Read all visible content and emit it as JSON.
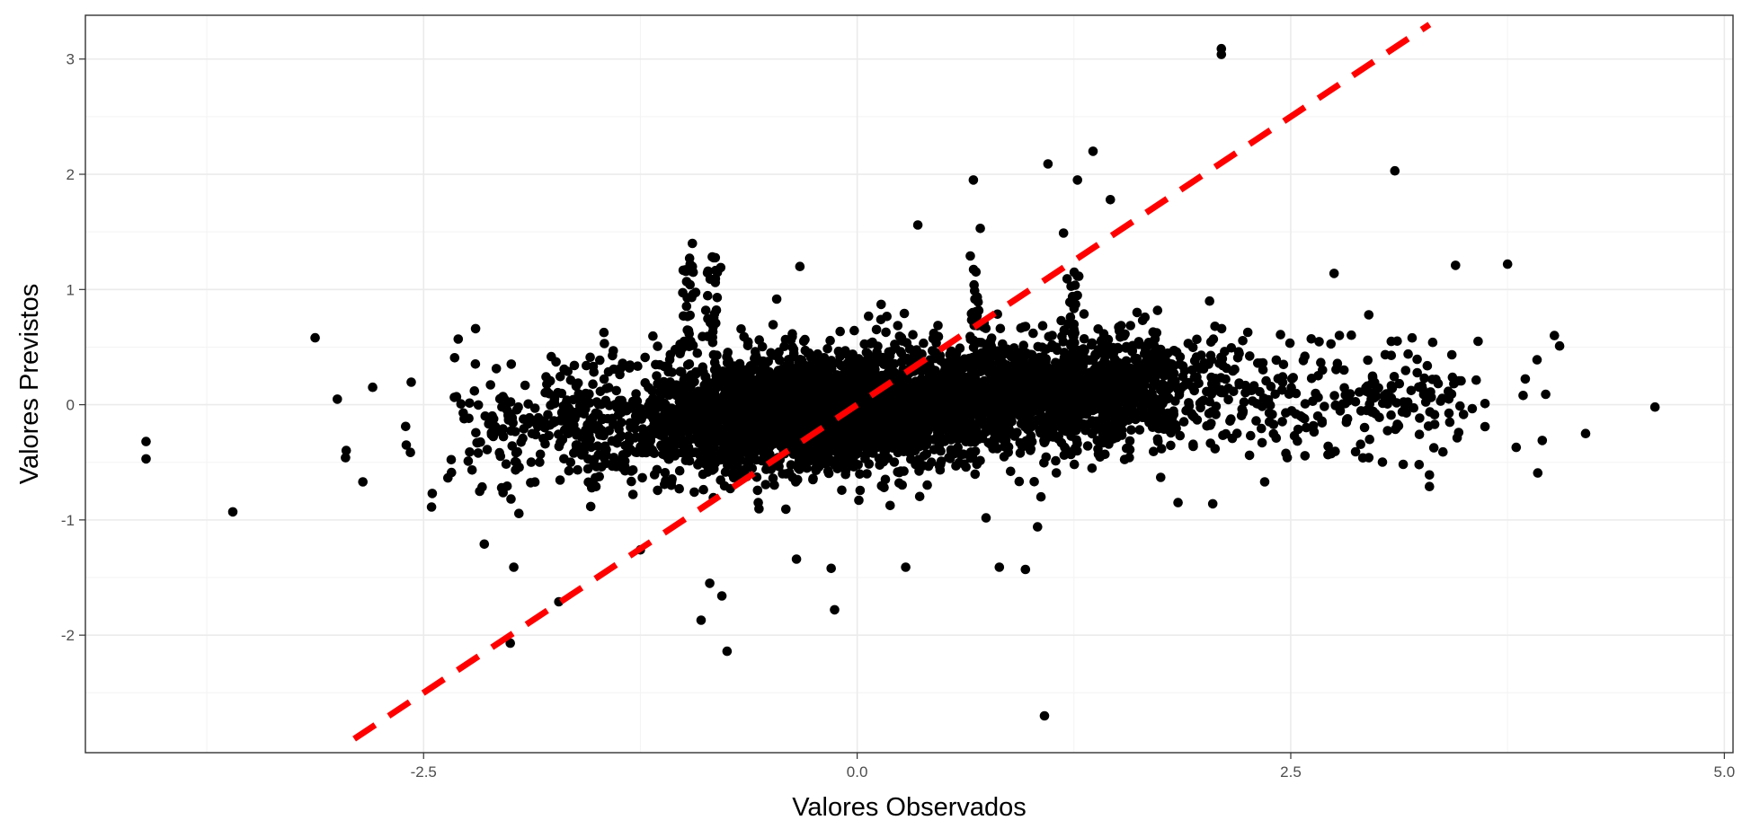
{
  "chart_data": {
    "type": "scatter",
    "title": "",
    "xlabel": "Valores Observados",
    "ylabel": "Valores Previstos",
    "xlim": [
      -4.45,
      5.05
    ],
    "ylim": [
      -3.02,
      3.38
    ],
    "x_ticks": [
      -2.5,
      0.0,
      2.5,
      5.0
    ],
    "x_tick_labels": [
      "-2.5",
      "0.0",
      "2.5",
      "5.0"
    ],
    "y_ticks": [
      -2,
      -1,
      0,
      1,
      2,
      3
    ],
    "y_tick_labels": [
      "-2",
      "-1",
      "0",
      "1",
      "2",
      "3"
    ],
    "grid": true,
    "legend": "none",
    "point_color": "#000000",
    "reference_line": {
      "label": "",
      "slope": 1,
      "intercept": 0,
      "from": -2.9,
      "to": 3.3,
      "color": "#ff0000",
      "style": "dashed"
    },
    "point_cloud": {
      "core_center_x": -0.3,
      "core_center_y": -0.08,
      "core_sd_x": 0.55,
      "core_sd_y": 0.25,
      "right_center_x": 1.1,
      "right_center_y": 0.12,
      "right_sd_x": 0.5,
      "right_sd_y": 0.22
    },
    "outliers": [
      {
        "x": -4.1,
        "y": -0.32
      },
      {
        "x": -4.1,
        "y": -0.47
      },
      {
        "x": -3.6,
        "y": -0.93
      },
      {
        "x": -2.95,
        "y": -0.46
      },
      {
        "x": -2.85,
        "y": -0.67
      },
      {
        "x": -2.6,
        "y": -0.35
      },
      {
        "x": -2.45,
        "y": -0.77
      },
      {
        "x": -2.3,
        "y": 0.57
      },
      {
        "x": -2.2,
        "y": 0.66
      },
      {
        "x": -2.15,
        "y": -1.21
      },
      {
        "x": -1.98,
        "y": -1.41
      },
      {
        "x": -2.0,
        "y": -2.07
      },
      {
        "x": -1.72,
        "y": -1.71
      },
      {
        "x": -1.25,
        "y": -1.26
      },
      {
        "x": -0.9,
        "y": -1.87
      },
      {
        "x": -0.75,
        "y": -2.14
      },
      {
        "x": -0.85,
        "y": -1.55
      },
      {
        "x": -0.78,
        "y": -1.66
      },
      {
        "x": -0.13,
        "y": -1.78
      },
      {
        "x": -0.35,
        "y": -1.34
      },
      {
        "x": -0.15,
        "y": -1.42
      },
      {
        "x": 0.28,
        "y": -1.41
      },
      {
        "x": 0.82,
        "y": -1.41
      },
      {
        "x": 0.97,
        "y": -1.43
      },
      {
        "x": 1.08,
        "y": -2.7
      },
      {
        "x": 1.04,
        "y": -1.06
      },
      {
        "x": 1.06,
        "y": -0.8
      },
      {
        "x": 2.1,
        "y": 3.09
      },
      {
        "x": 2.1,
        "y": 3.04
      },
      {
        "x": 3.1,
        "y": 2.03
      },
      {
        "x": 1.1,
        "y": 2.09
      },
      {
        "x": 1.27,
        "y": 1.95
      },
      {
        "x": 1.36,
        "y": 2.2
      },
      {
        "x": 0.67,
        "y": 1.95
      },
      {
        "x": 1.46,
        "y": 1.78
      },
      {
        "x": 0.35,
        "y": 1.56
      },
      {
        "x": -0.95,
        "y": 1.4
      },
      {
        "x": -0.95,
        "y": 1.2
      },
      {
        "x": -0.33,
        "y": 1.2
      },
      {
        "x": 0.71,
        "y": 1.53
      },
      {
        "x": 1.19,
        "y": 1.49
      },
      {
        "x": 2.75,
        "y": 1.14
      },
      {
        "x": 3.45,
        "y": 1.21
      },
      {
        "x": 3.75,
        "y": 1.22
      },
      {
        "x": 4.02,
        "y": 0.6
      },
      {
        "x": 4.05,
        "y": 0.51
      },
      {
        "x": 3.92,
        "y": 0.39
      },
      {
        "x": 4.6,
        "y": -0.02
      },
      {
        "x": 4.2,
        "y": -0.25
      },
      {
        "x": 3.95,
        "y": -0.31
      },
      {
        "x": 3.8,
        "y": -0.37
      },
      {
        "x": 3.97,
        "y": 0.09
      },
      {
        "x": 3.84,
        "y": 0.08
      },
      {
        "x": 3.62,
        "y": 0.01
      },
      {
        "x": 3.62,
        "y": -0.19
      },
      {
        "x": 3.58,
        "y": 0.55
      },
      {
        "x": 3.3,
        "y": -0.61
      },
      {
        "x": 3.3,
        "y": -0.71
      },
      {
        "x": 3.24,
        "y": -0.52
      },
      {
        "x": 2.95,
        "y": -0.46
      },
      {
        "x": 2.95,
        "y": 0.78
      },
      {
        "x": 3.2,
        "y": 0.58
      },
      {
        "x": 2.35,
        "y": -0.67
      },
      {
        "x": 2.05,
        "y": -0.86
      },
      {
        "x": 1.85,
        "y": -0.85
      },
      {
        "x": 2.48,
        "y": -0.46
      }
    ]
  }
}
